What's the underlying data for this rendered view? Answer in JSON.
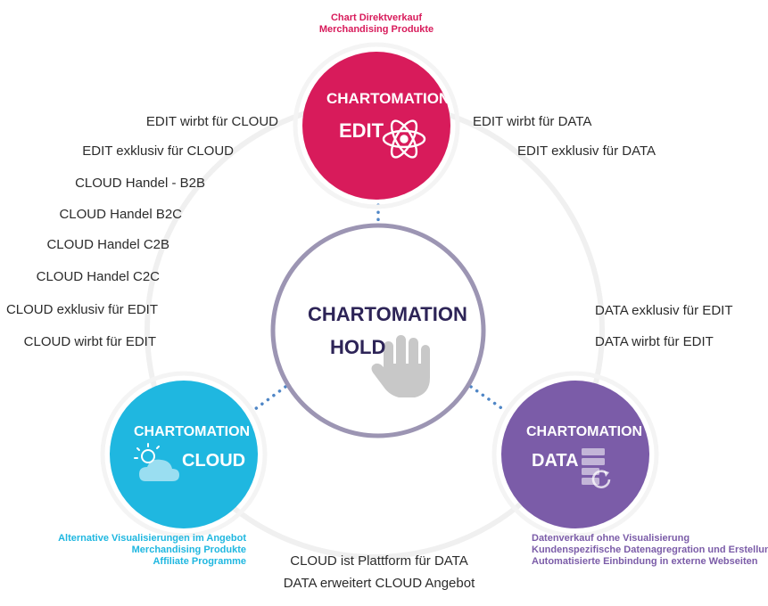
{
  "colors": {
    "edit": "#d81b5b",
    "cloud": "#1fb7e0",
    "data": "#7b5ca8",
    "hold_border": "#9c95b3",
    "hold_text": "#2d2457",
    "link_dots": "#4f86c6",
    "ring": "#f0f0f0",
    "icon_gray": "#c8c8c8"
  },
  "nodes": {
    "edit": {
      "line1": "CHARTOMATION",
      "line2": "EDIT",
      "icon": "atom-icon"
    },
    "hold": {
      "line1": "CHARTOMATION",
      "line2": "HOLD",
      "icon": "hand-icon"
    },
    "cloud": {
      "line1": "CHARTOMATION",
      "line2": "CLOUD",
      "icon": "sun-cloud-icon"
    },
    "data": {
      "line1": "CHARTOMATION",
      "line2": "DATA",
      "icon": "server-refresh-icon"
    }
  },
  "edit_note": [
    "Chart Direktverkauf",
    "Merchandising Produkte"
  ],
  "cloud_note": [
    "Alternative Visualisierungen im Angebot",
    "Merchandising Produkte",
    "Affiliate Programme"
  ],
  "data_note": [
    "Datenverkauf ohne Visualisierung",
    "Kundenspezifische Datenagregration und Erstellung",
    "Automatisierte Einbindung in externe Webseiten"
  ],
  "relations": {
    "edit_cloud_left": [
      "EDIT wirbt für CLOUD",
      "EDIT exklusiv für CLOUD"
    ],
    "cloud_left": [
      "CLOUD Handel - B2B",
      "CLOUD Handel B2C",
      "CLOUD Handel C2B",
      "CLOUD Handel C2C",
      "CLOUD exklusiv für EDIT",
      "CLOUD wirbt für EDIT"
    ],
    "edit_data_right": [
      "EDIT wirbt für DATA",
      "EDIT exklusiv für DATA"
    ],
    "data_right": [
      "DATA exklusiv für EDIT",
      "DATA wirbt für EDIT"
    ],
    "cloud_data_bottom": [
      "CLOUD ist Plattform für DATA",
      "DATA erweitert CLOUD Angebot"
    ]
  }
}
